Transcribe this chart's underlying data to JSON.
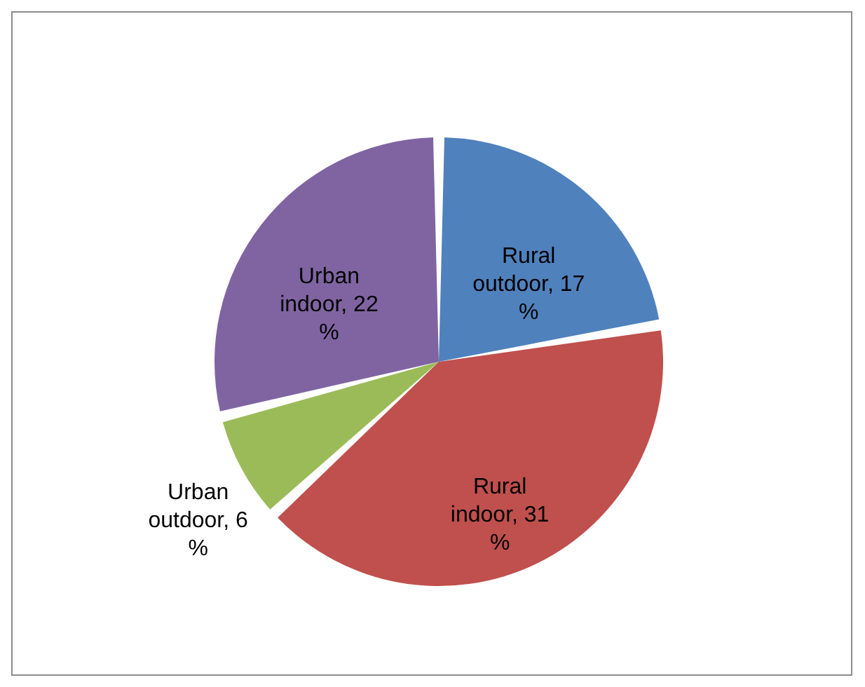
{
  "chart_data": {
    "type": "pie",
    "categories": [
      "Rural outdoor",
      "Rural indoor",
      "Urban outdoor",
      "Urban indoor"
    ],
    "values": [
      17,
      31,
      6,
      22
    ],
    "value_labels": [
      "17 %",
      "31 %",
      "6 %",
      "22 %"
    ],
    "colors": [
      "#4f81bd",
      "#c0504d",
      "#9bbb59",
      "#8064a2"
    ]
  }
}
